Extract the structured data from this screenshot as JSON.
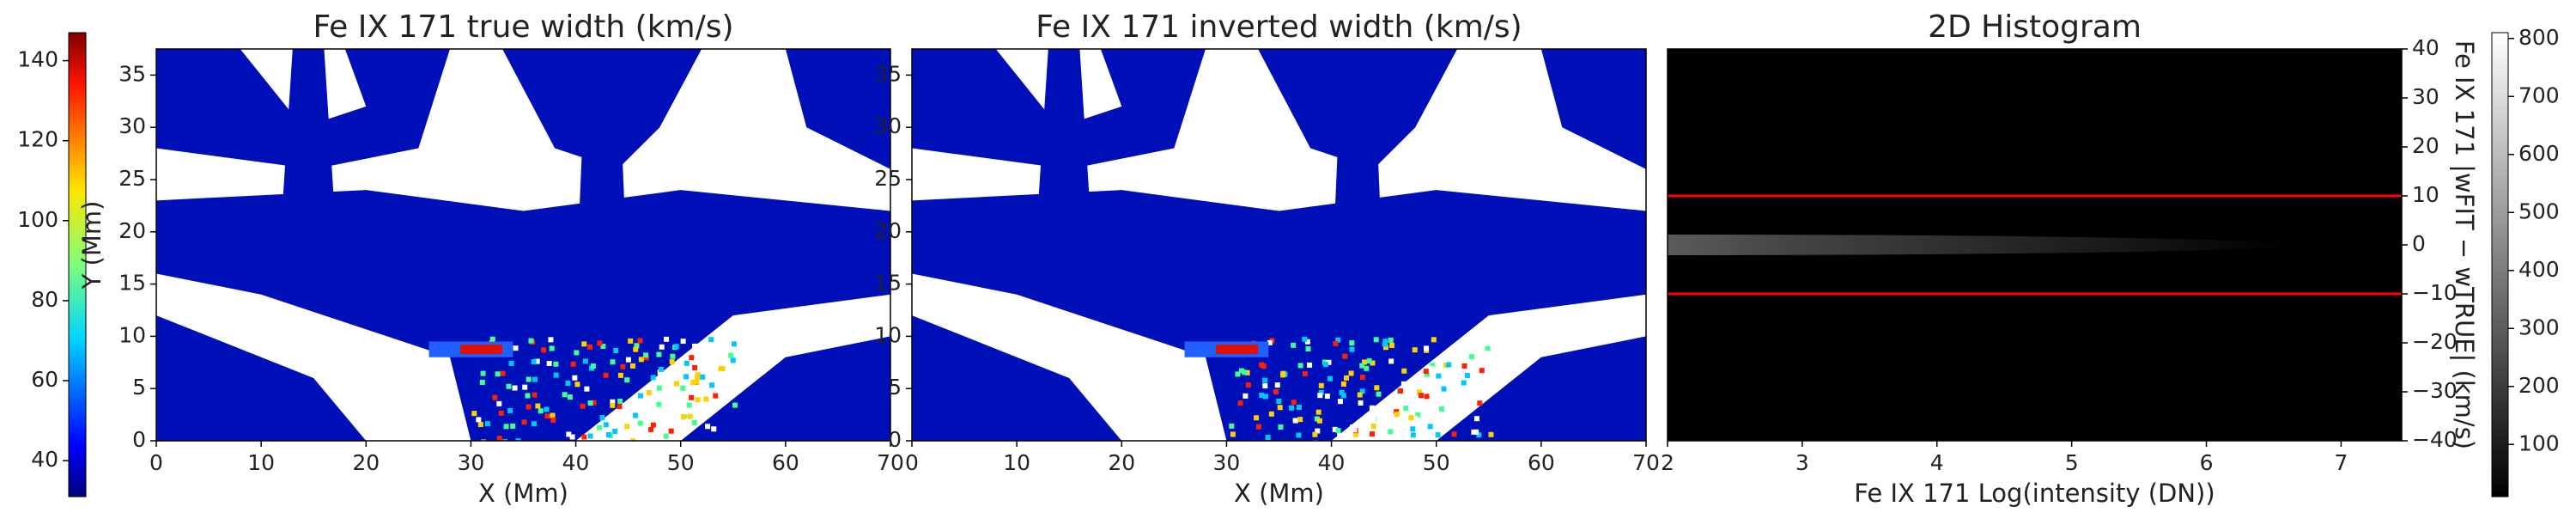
{
  "chart_data": [
    {
      "type": "colorbar",
      "colormap": "jet",
      "ylim": [
        31,
        147
      ],
      "yticks": [
        40,
        60,
        80,
        100,
        120,
        140
      ]
    },
    {
      "type": "heatmap",
      "title": "Fe IX 171  true width (km/s)",
      "x_label": "X (Mm)",
      "y_label": "Y (Mm)",
      "colormap": "jet",
      "xlim": [
        0,
        70
      ],
      "xticks": [
        0,
        10,
        20,
        30,
        40,
        50,
        60,
        70
      ],
      "ylim": [
        0,
        37.5
      ],
      "yticks": [
        0,
        5,
        10,
        15,
        20,
        25,
        30,
        35
      ]
    },
    {
      "type": "heatmap",
      "title": "Fe IX 171  inverted width (km/s)",
      "x_label": "X (Mm)",
      "colormap": "jet",
      "xlim": [
        0,
        70
      ],
      "xticks": [
        0,
        10,
        20,
        30,
        40,
        50,
        60,
        70
      ],
      "ylim": [
        0,
        37.5
      ],
      "yticks": [
        0,
        5,
        10,
        15,
        20,
        25,
        30,
        35
      ]
    },
    {
      "type": "histogram2d",
      "title": "2D Histogram",
      "x_label": "Fe IX 171 Log(intensity (DN))",
      "y_label": "Fe IX 171  |wFIT − wTRUE| (km/s)",
      "colormap": "gray",
      "xlim": [
        2,
        7.45
      ],
      "xticks": [
        2,
        3,
        4,
        5,
        6,
        7
      ],
      "ylim": [
        -40,
        40
      ],
      "yticks": [
        {
          "value": -40,
          "label": "−40"
        },
        {
          "value": -30,
          "label": "−30"
        },
        {
          "value": -20,
          "label": "−20"
        },
        {
          "value": -10,
          "label": "−10"
        },
        0,
        10,
        20,
        30,
        40
      ],
      "y_axis_side": "right",
      "hlines": [
        10,
        -10
      ],
      "hline_color": "#ff0000"
    },
    {
      "type": "colorbar",
      "colormap": "gray",
      "ylim": [
        10,
        810
      ],
      "yticks": [
        100,
        200,
        300,
        400,
        500,
        600,
        700,
        800
      ]
    }
  ]
}
